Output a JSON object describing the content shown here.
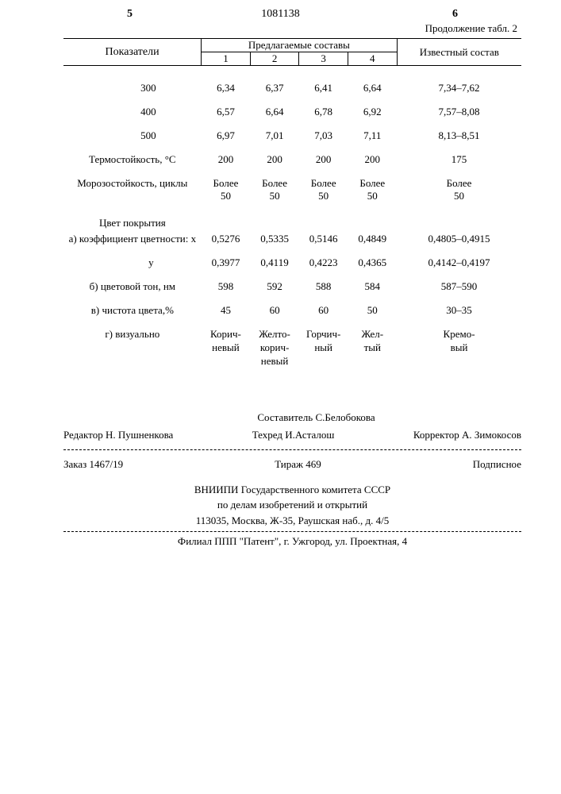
{
  "doc_number": "1081138",
  "page_left": "5",
  "page_right": "6",
  "continuation": "Продолжение табл. 2",
  "header": {
    "pokazateli": "Показатели",
    "predlagaemye": "Предлагаемые составы",
    "cols": [
      "1",
      "2",
      "3",
      "4"
    ],
    "izvestnyi": "Известный состав"
  },
  "rows": [
    {
      "label": "300",
      "v": [
        "6,34",
        "6,37",
        "6,41",
        "6,64",
        "7,34–7,62"
      ]
    },
    {
      "label": "400",
      "v": [
        "6,57",
        "6,64",
        "6,78",
        "6,92",
        "7,57–8,08"
      ]
    },
    {
      "label": "500",
      "v": [
        "6,97",
        "7,01",
        "7,03",
        "7,11",
        "8,13–8,51"
      ]
    },
    {
      "label": "Термостойкость, °С",
      "v": [
        "200",
        "200",
        "200",
        "200",
        "175"
      ]
    },
    {
      "label": "Морозостойкость, циклы",
      "v": [
        "Более 50",
        "Более 50",
        "Более 50",
        "Более 50",
        "Более 50"
      ],
      "two_line": true
    },
    {
      "label": "Цвет покрытия",
      "section": true
    },
    {
      "label": "а) коэффициент цветности: х",
      "v": [
        "0,5276",
        "0,5335",
        "0,5146",
        "0,4849",
        "0,4805–0,4915"
      ]
    },
    {
      "label": "у",
      "indent": true,
      "v": [
        "0,3977",
        "0,4119",
        "0,4223",
        "0,4365",
        "0,4142–0,4197"
      ]
    },
    {
      "label": "б) цветовой тон, нм",
      "v": [
        "598",
        "592",
        "588",
        "584",
        "587–590"
      ]
    },
    {
      "label": "в) чистота цвета,%",
      "v": [
        "45",
        "60",
        "60",
        "50",
        "30–35"
      ]
    },
    {
      "label": "г) визуально",
      "v": [
        "Корич-невый",
        "Желто-корич-невый",
        "Горчич-ный",
        "Жел-тый",
        "Кремо-вый"
      ],
      "multi_line": true
    }
  ],
  "footer": {
    "sostavitel": "Составитель С.Белобокова",
    "redaktor": "Редактор Н. Пушненкова",
    "techred": "Техред И.Асталош",
    "korrektor": "Корректор А. Зимокосов",
    "zakaz": "Заказ 1467/19",
    "tirazh": "Тираж 469",
    "podpisnoe": "Подписное",
    "org1": "ВНИИПИ Государственного комитета СССР",
    "org2": "по делам изобретений и открытий",
    "addr": "113035, Москва, Ж-35, Раушская наб., д. 4/5",
    "filial": "Филиал ППП \"Патент\", г. Ужгород, ул. Проектная, 4"
  }
}
